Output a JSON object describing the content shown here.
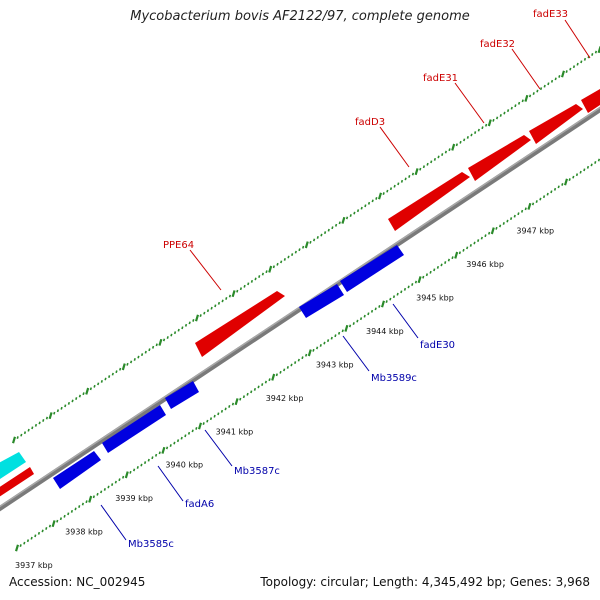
{
  "title": "Mycobacterium bovis AF2122/97, complete genome",
  "footer": {
    "accession": "Accession: NC_002945",
    "summary": "Topology: circular; Length: 4,345,492 bp; Genes: 3,968"
  },
  "colors": {
    "forward_gene": "#e00000",
    "reverse_gene": "#0000e0",
    "other_gene": "#00e0e0",
    "backbone": "#808080",
    "ticks": "#2a8a2a",
    "forward_label": "#cc0000",
    "reverse_label": "#0000aa"
  },
  "kbp_ticks": [
    "3937 kbp",
    "3938 kbp",
    "3939 kbp",
    "3940 kbp",
    "3941 kbp",
    "3942 kbp",
    "3943 kbp",
    "3944 kbp",
    "3945 kbp",
    "3946 kbp",
    "3947 kbp"
  ],
  "forward_labels": [
    "PPE64",
    "fadD3",
    "fadE31",
    "fadE32",
    "fadE33"
  ],
  "reverse_labels": [
    "Mb3585c",
    "fadA6",
    "Mb3587c",
    "Mb3589c",
    "fadE30"
  ]
}
